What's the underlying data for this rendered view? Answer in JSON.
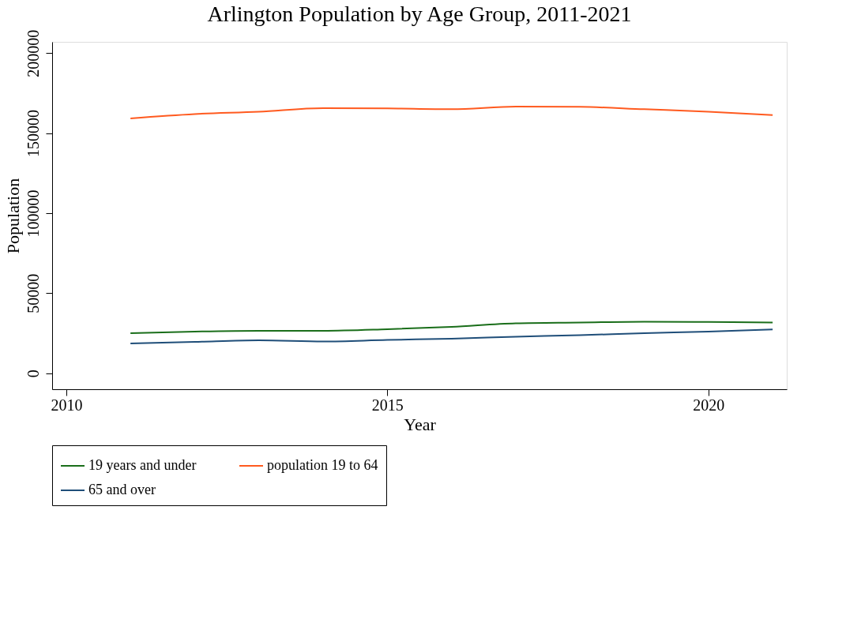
{
  "chart_data": {
    "type": "line",
    "title": "Arlington Population by Age Group, 2011-2021",
    "xlabel": "Year",
    "ylabel": "Population",
    "x": [
      2011,
      2012,
      2013,
      2014,
      2015,
      2016,
      2017,
      2018,
      2019,
      2020,
      2021
    ],
    "series": [
      {
        "name": "19 years and under",
        "color": "#1a6e1a",
        "values": [
          25000,
          26000,
          26500,
          26500,
          27500,
          29000,
          31200,
          31700,
          32200,
          32000,
          31700
        ]
      },
      {
        "name": "population 19 to 64",
        "color": "#ff5a1f",
        "values": [
          159200,
          161900,
          163400,
          165600,
          165400,
          164900,
          166600,
          166400,
          164900,
          163400,
          161200
        ]
      },
      {
        "name": "65 and over",
        "color": "#1f4e79",
        "values": [
          18600,
          19600,
          20600,
          19800,
          20800,
          21600,
          22800,
          23800,
          25000,
          26000,
          27300
        ]
      }
    ],
    "xlim": [
      2009.78,
      2021.22
    ],
    "xticks": [
      2010,
      2015,
      2020
    ],
    "ylim": [
      -10000,
      207000
    ],
    "yticks": [
      0,
      50000,
      100000,
      150000,
      200000
    ],
    "grid": false,
    "legend": "bottom",
    "marker": "none",
    "line_style": "solid"
  }
}
